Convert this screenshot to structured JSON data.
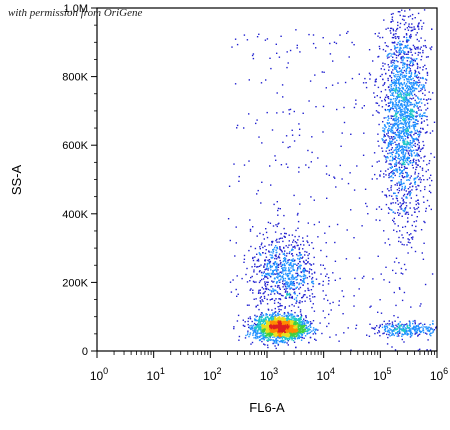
{
  "watermark": "with permission from OriGene",
  "chart_data": {
    "type": "heatmap",
    "subtype": "flow-cytometry-density-dot-plot",
    "xlabel": "FL6-A",
    "ylabel": "SS-A",
    "x_scale": "log10",
    "x_range": [
      1,
      1000000
    ],
    "x_ticks": [
      {
        "value": 1,
        "base": "10",
        "exp": "0"
      },
      {
        "value": 10,
        "base": "10",
        "exp": "1"
      },
      {
        "value": 100,
        "base": "10",
        "exp": "2"
      },
      {
        "value": 1000,
        "base": "10",
        "exp": "3"
      },
      {
        "value": 10000,
        "base": "10",
        "exp": "4"
      },
      {
        "value": 100000,
        "base": "10",
        "exp": "5"
      },
      {
        "value": 1000000,
        "base": "10",
        "exp": "6"
      }
    ],
    "y_scale": "linear",
    "y_range": [
      0,
      1000000
    ],
    "y_ticks": [
      {
        "value": 0,
        "label": "0"
      },
      {
        "value": 200000,
        "label": "200K"
      },
      {
        "value": 400000,
        "label": "400K"
      },
      {
        "value": 600000,
        "label": "600K"
      },
      {
        "value": 800000,
        "label": "800K"
      },
      {
        "value": 1000000,
        "label": "1,0M"
      }
    ],
    "colormap": [
      "#2020d0",
      "#1e90ff",
      "#20c8c8",
      "#40d040",
      "#e8e020",
      "#ff8c00",
      "#e02020"
    ],
    "populations": [
      {
        "x_center": 1700,
        "x_spread_decades": 0.22,
        "y_center": 70000,
        "y_spread": 17000,
        "relative_density": 1.0
      },
      {
        "x_center": 2000,
        "x_spread_decades": 0.3,
        "y_center": 230000,
        "y_spread": 55000,
        "relative_density": 0.3
      },
      {
        "x_center": 250000,
        "x_spread_decades": 0.2,
        "y_center": 680000,
        "y_spread": 150000,
        "relative_density": 0.75
      },
      {
        "x_center": 300000,
        "x_spread_decades": 0.3,
        "y_center": 65000,
        "y_spread": 10000,
        "relative_density": 0.12
      }
    ]
  }
}
